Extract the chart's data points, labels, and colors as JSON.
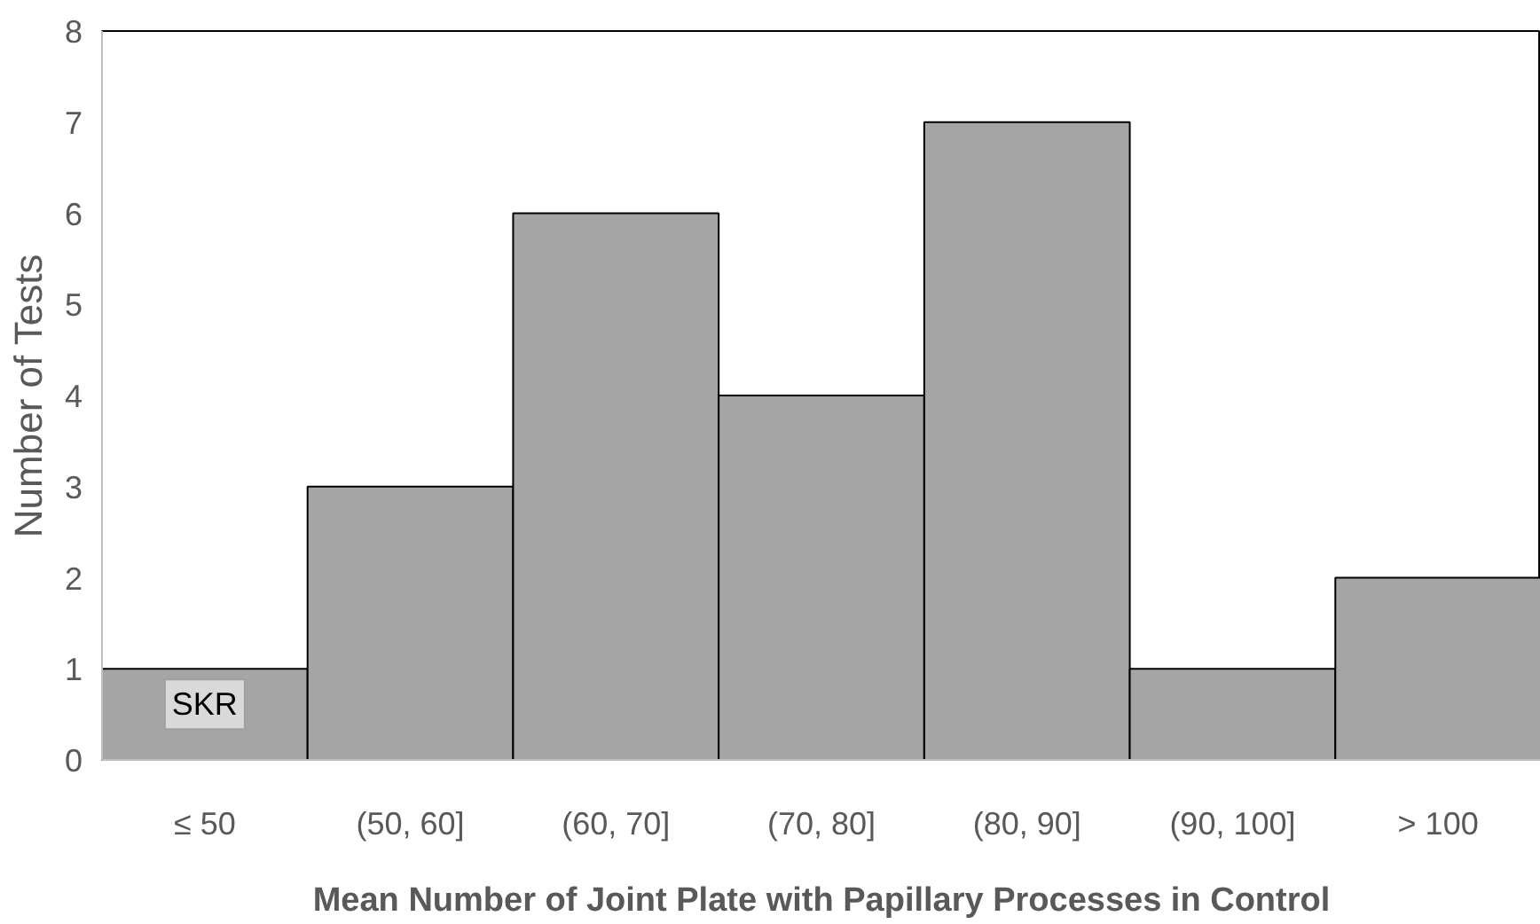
{
  "chart_data": {
    "type": "bar",
    "xlabel": "Mean Number of Joint Plate with Papillary Processes in Control",
    "ylabel": "Number of Tests",
    "categories": [
      "≤ 50",
      "(50, 60]",
      "(60, 70]",
      "(70, 80]",
      "(80, 90]",
      "(90, 100]",
      "> 100"
    ],
    "values": [
      1,
      3,
      6,
      4,
      7,
      1,
      2
    ],
    "color": "#a5a5a5",
    "ylim": [
      0,
      8
    ],
    "yticks": [
      0,
      1,
      2,
      3,
      4,
      5,
      6,
      7,
      8
    ],
    "grid": false,
    "annotations": [
      {
        "text": "SKR",
        "x": "≤ 50",
        "y": 1
      }
    ]
  }
}
